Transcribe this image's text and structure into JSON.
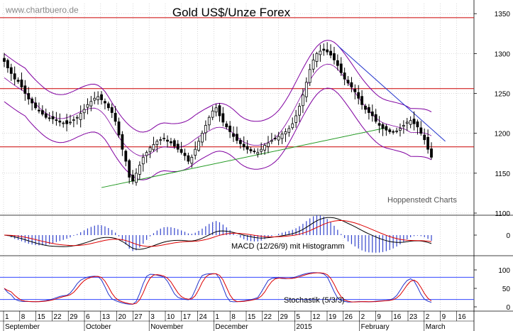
{
  "watermark": "www.chartbuero.de",
  "credit": "Hoppenstedt Charts",
  "chart_data": [
    {
      "type": "candlestick",
      "title": "Gold US$/Unze Forex",
      "ylim": [
        1100,
        1360
      ],
      "yticks": [
        1100,
        1150,
        1200,
        1250,
        1300,
        1350
      ],
      "x_day_labels": [
        "1",
        "8",
        "15",
        "22",
        "29",
        "6",
        "13",
        "20",
        "27",
        "3",
        "10",
        "17",
        "24",
        "1",
        "8",
        "15",
        "22",
        "29",
        "5",
        "12",
        "19",
        "26",
        "2",
        "9",
        "16",
        "23",
        "2",
        "9",
        "16"
      ],
      "x_month_labels": [
        "September",
        "October",
        "November",
        "December",
        "2015",
        "February",
        "March"
      ],
      "horizontal_levels": [
        1345,
        1256,
        1183
      ],
      "trendlines": [
        {
          "name": "support",
          "from": [
            28,
            1132
          ],
          "to": [
            110,
            1207
          ]
        },
        {
          "name": "resistance",
          "from": [
            96,
            1310
          ],
          "to": [
            127,
            1190
          ]
        }
      ],
      "close_series": [
        1290,
        1282,
        1275,
        1268,
        1265,
        1258,
        1250,
        1243,
        1238,
        1232,
        1228,
        1224,
        1220,
        1219,
        1218,
        1216,
        1214,
        1213,
        1212,
        1214,
        1217,
        1220,
        1225,
        1230,
        1236,
        1240,
        1244,
        1246,
        1242,
        1238,
        1232,
        1226,
        1215,
        1198,
        1180,
        1165,
        1145,
        1140,
        1150,
        1160,
        1170,
        1176,
        1182,
        1186,
        1190,
        1192,
        1194,
        1190,
        1188,
        1184,
        1180,
        1176,
        1172,
        1165,
        1170,
        1180,
        1190,
        1200,
        1210,
        1220,
        1228,
        1232,
        1222,
        1214,
        1208,
        1202,
        1196,
        1191,
        1187,
        1183,
        1180,
        1178,
        1177,
        1176,
        1180,
        1185,
        1188,
        1191,
        1193,
        1196,
        1199,
        1202,
        1206,
        1212,
        1222,
        1234,
        1248,
        1264,
        1280,
        1292,
        1300,
        1303,
        1304,
        1302,
        1298,
        1292,
        1285,
        1276,
        1268,
        1263,
        1258,
        1252,
        1244,
        1236,
        1230,
        1226,
        1222,
        1215,
        1210,
        1206,
        1204,
        1202,
        1202,
        1203,
        1206,
        1210,
        1214,
        1216,
        1212,
        1208,
        1200,
        1192,
        1180,
        1170
      ],
      "bands": {
        "upper_offset": 30,
        "lower_offset": 30
      }
    },
    {
      "type": "macd",
      "label": "MACD (12/26/9) mit Histogramm",
      "yticks": [
        0
      ],
      "ylim": [
        -30,
        30
      ]
    },
    {
      "type": "stochastic",
      "label": "Stochastik (5/3/3)",
      "yticks": [
        0,
        50,
        100
      ],
      "levels": [
        80,
        20
      ],
      "ylim": [
        0,
        100
      ]
    }
  ],
  "colors": {
    "candle": "#000000",
    "bands": "#8000a0",
    "levels": "#cc0000",
    "support": "#229922",
    "resistance": "#2233cc",
    "macd_line": "#000000",
    "signal_line": "#dd0000",
    "histogram": "#3344cc",
    "stoch_k": "#2233cc",
    "stoch_d": "#dd0000",
    "stoch_levels": "#3344ff",
    "grid": "#bfbfbf"
  }
}
